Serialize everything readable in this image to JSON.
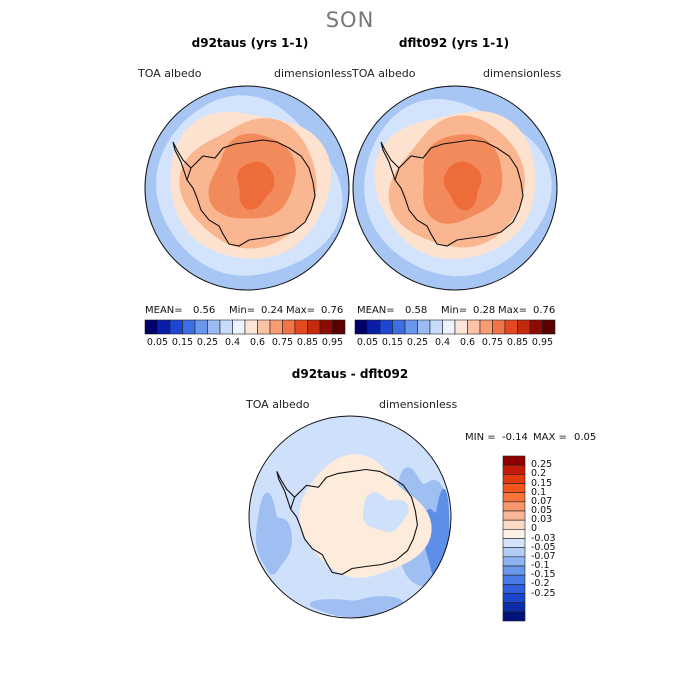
{
  "page_title": "SON",
  "colors": {
    "ocean_low": "#d3e3fb",
    "ocean_mid": "#a7c6f4",
    "ocean_deep": "#7aa6ef",
    "pale_peach": "#fde2cf",
    "peach": "#f9b690",
    "orange": "#f28a5c",
    "deep_orange": "#ee6c3a",
    "diff_zero": "#fdebdc",
    "diff_neg1": "#cfe0fb",
    "diff_neg2": "#9fbff2",
    "diff_neg3": "#5d8ee8",
    "coast": "#111111"
  },
  "chart_data": [
    {
      "type": "heatmap",
      "title": "d92taus (yrs 1-1)",
      "variable": "TOA albedo",
      "units": "dimensionless",
      "stats": {
        "mean_label": "MEAN=",
        "mean": "0.56",
        "min_label": "Min=",
        "min": "0.24",
        "max_label": "Max=",
        "max": "0.76"
      },
      "colorbar": {
        "levels": [
          0.05,
          0.1,
          0.15,
          0.2,
          0.25,
          0.3,
          0.4,
          0.5,
          0.6,
          0.7,
          0.75,
          0.8,
          0.85,
          0.9,
          0.95
        ],
        "tick_labels": [
          "0.05",
          "0.15",
          "0.25",
          "0.4",
          "0.6",
          "0.75",
          "0.85",
          "0.95"
        ],
        "colors": [
          "#00006a",
          "#0a1ea5",
          "#1e46d4",
          "#3c6ee6",
          "#6a96ee",
          "#9bbcf3",
          "#c8dbfa",
          "#eef4ff",
          "#fde6d8",
          "#fbc4a6",
          "#f89c74",
          "#f27447",
          "#e6481f",
          "#c42a0e",
          "#8e0b04",
          "#5c0000"
        ]
      }
    },
    {
      "type": "heatmap",
      "title": "dflt092 (yrs 1-1)",
      "variable": "TOA albedo",
      "units": "dimensionless",
      "stats": {
        "mean_label": "MEAN=",
        "mean": "0.58",
        "min_label": "Min=",
        "min": "0.28",
        "max_label": "Max=",
        "max": "0.76"
      },
      "colorbar": {
        "levels": [
          0.05,
          0.1,
          0.15,
          0.2,
          0.25,
          0.3,
          0.4,
          0.5,
          0.6,
          0.7,
          0.75,
          0.8,
          0.85,
          0.9,
          0.95
        ],
        "tick_labels": [
          "0.05",
          "0.15",
          "0.25",
          "0.4",
          "0.6",
          "0.75",
          "0.85",
          "0.95"
        ],
        "colors": [
          "#00006a",
          "#0a1ea5",
          "#1e46d4",
          "#3c6ee6",
          "#6a96ee",
          "#9bbcf3",
          "#c8dbfa",
          "#eef4ff",
          "#fde6d8",
          "#fbc4a6",
          "#f89c74",
          "#f27447",
          "#e6481f",
          "#c42a0e",
          "#8e0b04",
          "#5c0000"
        ]
      }
    },
    {
      "type": "heatmap",
      "title": "d92taus - dflt092",
      "variable": "TOA albedo",
      "units": "dimensionless",
      "stats": {
        "min_label": "MIN =",
        "min": "-0.14",
        "max_label": "MAX =",
        "max": "0.05"
      },
      "colorbar": {
        "tick_labels": [
          "0.25",
          "0.2",
          "0.15",
          "0.1",
          "0.07",
          "0.05",
          "0.03",
          "0",
          "-0.03",
          "-0.05",
          "-0.07",
          "-0.1",
          "-0.15",
          "-0.2",
          "-0.25"
        ],
        "colors": [
          "#8e0000",
          "#c41a0a",
          "#e0380f",
          "#f2551c",
          "#f7733a",
          "#f8956a",
          "#f9b596",
          "#fcd9c3",
          "#fdf0e6",
          "#d3e3fb",
          "#b1ccf5",
          "#8eb3f1",
          "#6a96ec",
          "#4a7ae6",
          "#2f5fde",
          "#1b45cc",
          "#0d2aa8",
          "#00127a"
        ]
      }
    }
  ]
}
